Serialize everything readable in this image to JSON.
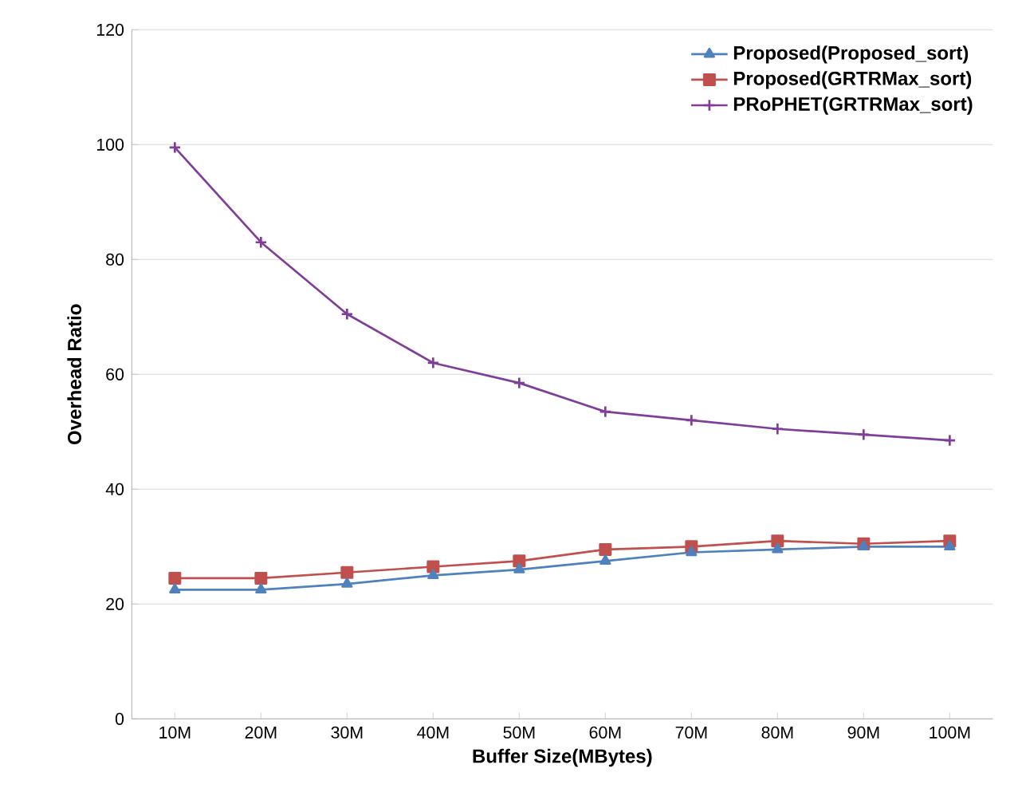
{
  "chart_data": {
    "type": "line",
    "xlabel": "Buffer Size(MBytes)",
    "ylabel": "Overhead Ratio",
    "categories": [
      "10M",
      "20M",
      "30M",
      "40M",
      "50M",
      "60M",
      "70M",
      "80M",
      "90M",
      "100M"
    ],
    "series": [
      {
        "name": "Proposed(Proposed_sort)",
        "color": "#4f81bd",
        "marker": "triangle",
        "values": [
          22.5,
          22.5,
          23.5,
          25,
          26,
          27.5,
          29,
          29.5,
          30,
          30
        ]
      },
      {
        "name": "Proposed(GRTRMax_sort)",
        "color": "#c0504d",
        "marker": "square",
        "values": [
          24.5,
          24.5,
          25.5,
          26.5,
          27.5,
          29.5,
          30,
          31,
          30.5,
          31
        ]
      },
      {
        "name": "PRoPHET(GRTRMax_sort)",
        "color": "#7f3f98",
        "marker": "cross",
        "values": [
          99.5,
          83,
          70.5,
          62,
          58.5,
          53.5,
          52,
          50.5,
          49.5,
          48.5
        ]
      }
    ],
    "ylim": [
      0,
      120
    ],
    "yticks": [
      0,
      20,
      40,
      60,
      80,
      100,
      120
    ],
    "grid": "y",
    "legend": "top right"
  }
}
